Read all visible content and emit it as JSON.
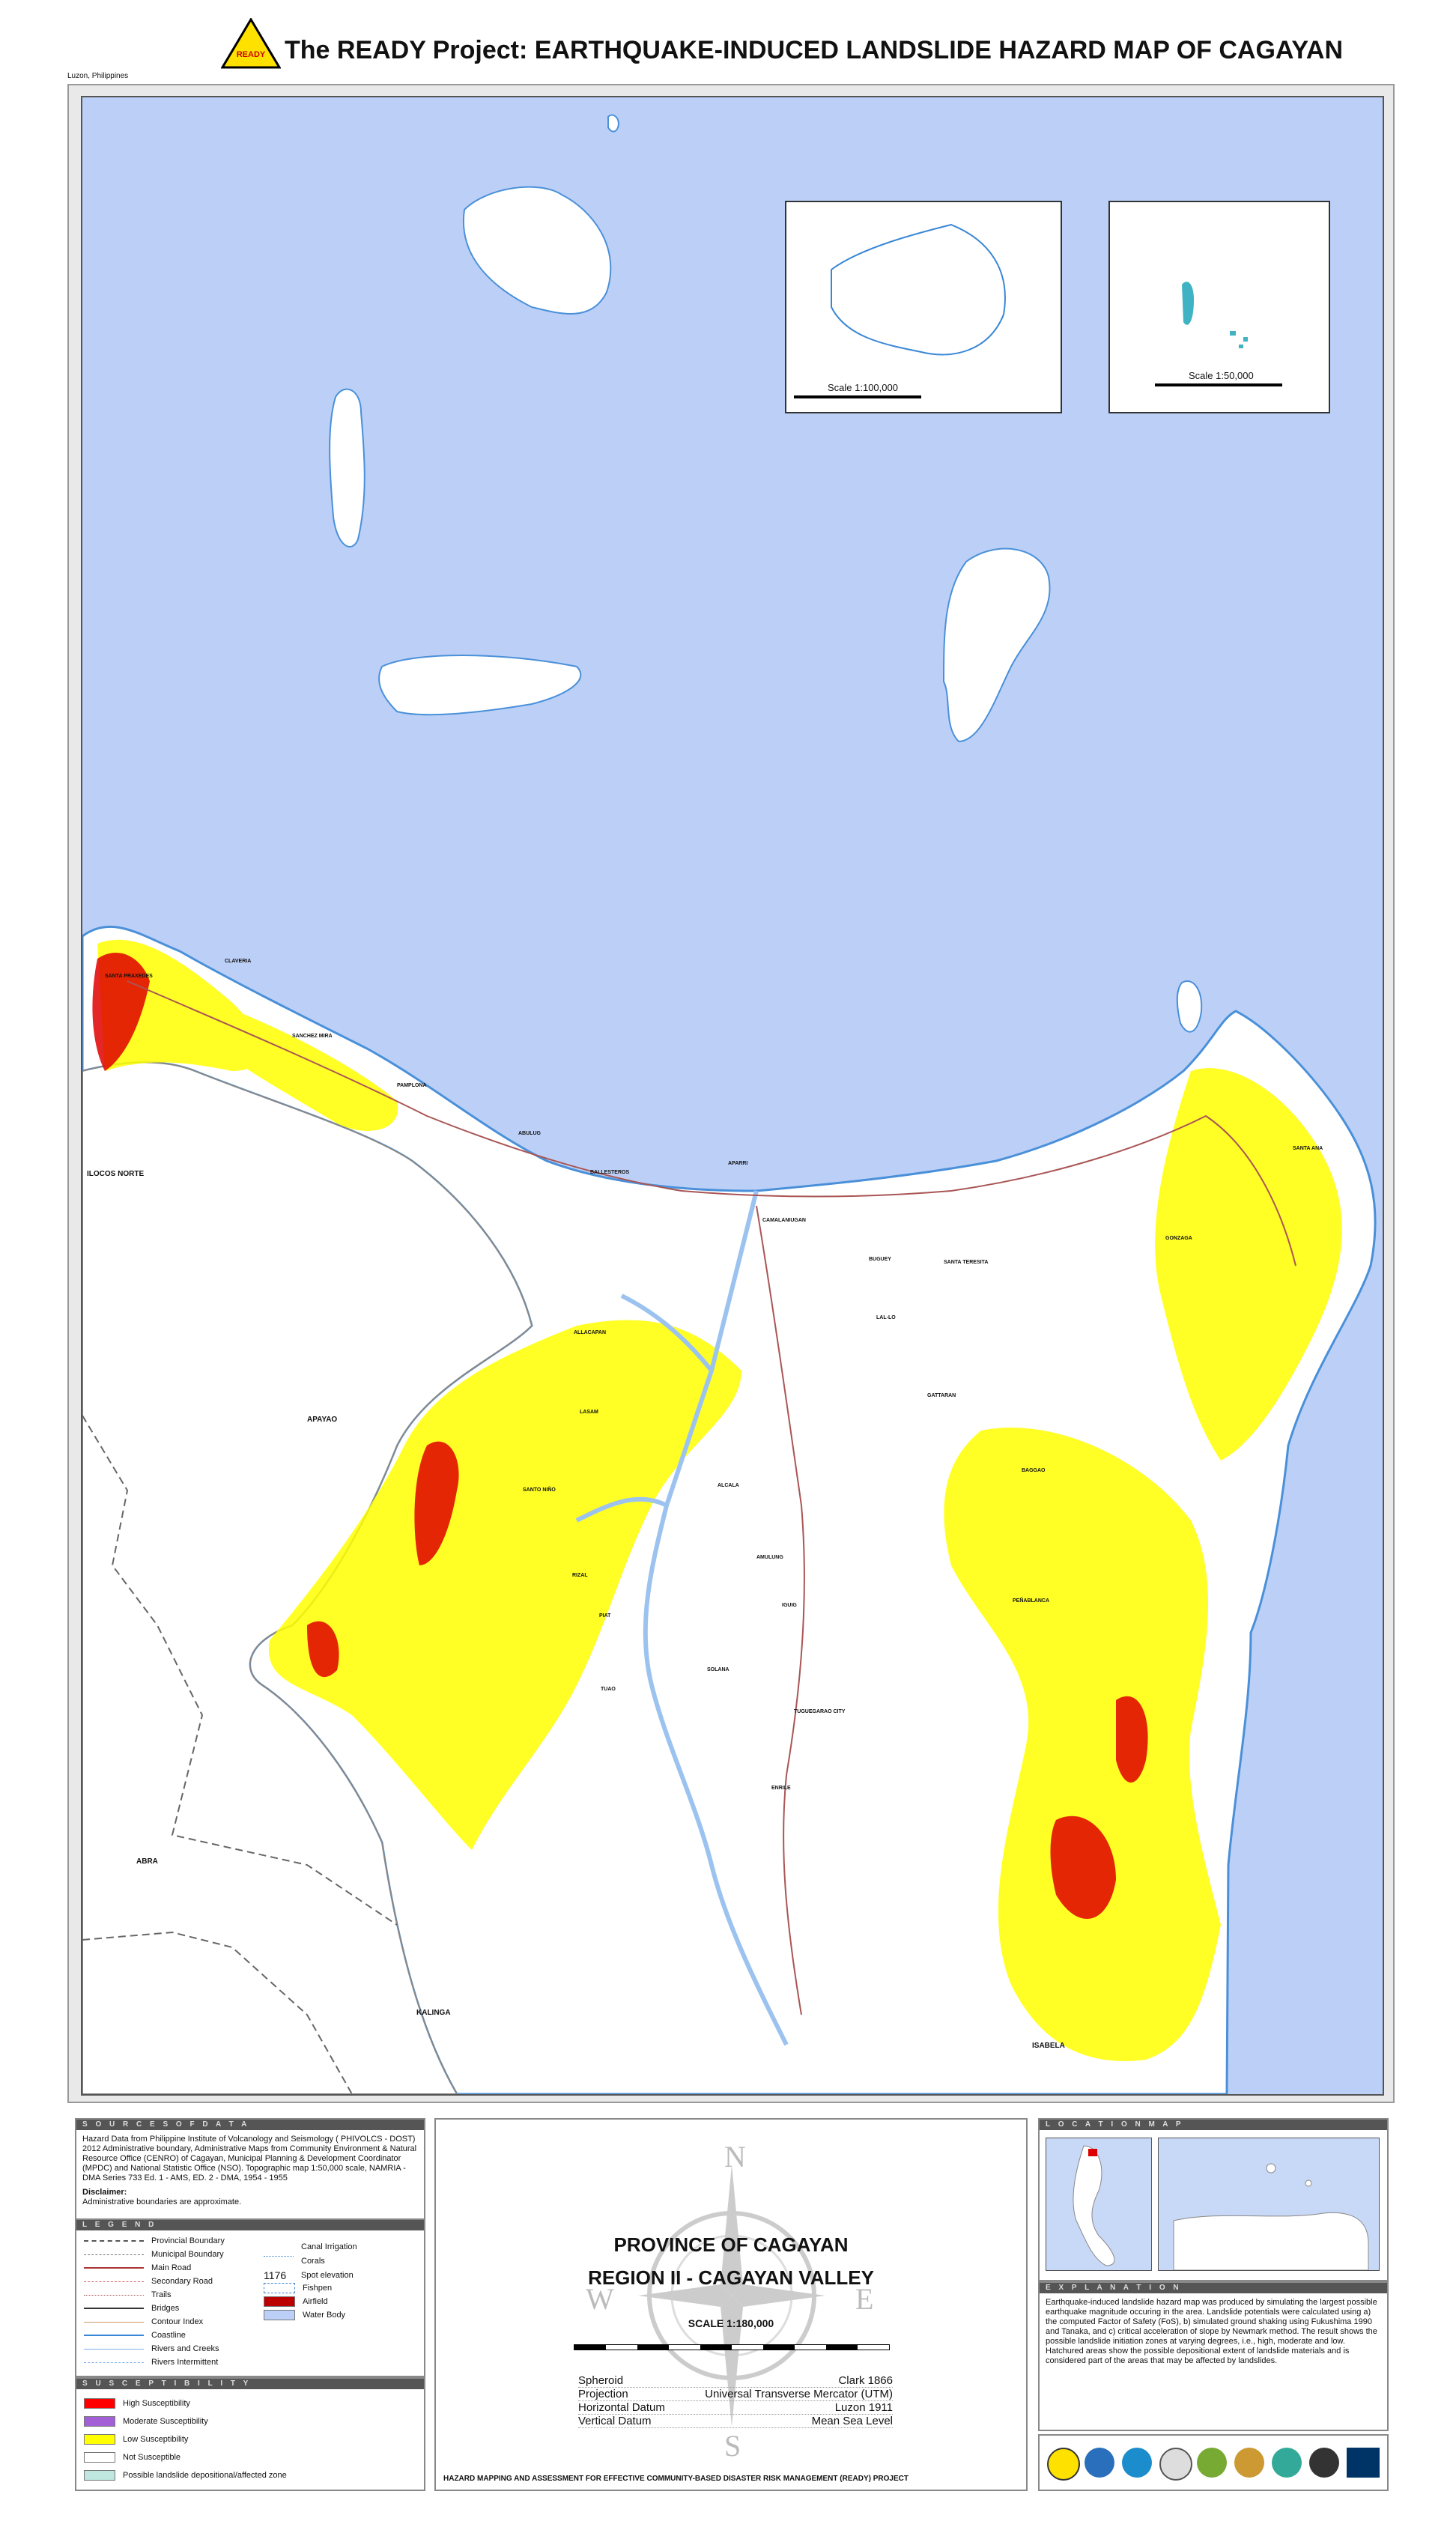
{
  "header": {
    "title": "The READY Project: EARTHQUAKE-INDUCED LANDSLIDE HAZARD MAP OF CAGAYAN",
    "logo_text": "READY",
    "location_note": "Luzon, Philippines"
  },
  "map": {
    "region_labels": [
      "ILOCOS NORTE",
      "APAYAO",
      "ABRA",
      "KALINGA",
      "ISABELA"
    ],
    "municipality_labels": [
      "SANTA PRAXEDES",
      "CLAVERIA",
      "SANCHEZ MIRA",
      "PAMPLONA",
      "ABULUG",
      "BALLESTEROS",
      "APARRI",
      "CAMALANIUGAN",
      "BUGUEY",
      "SANTA TERESITA",
      "GONZAGA",
      "SANTA ANA",
      "LAL-LO",
      "ALLACAPAN",
      "GATTARAN",
      "LASAM",
      "SANTO NIÑO",
      "ALCALA",
      "BAGGAO",
      "AMULUNG",
      "RIZAL",
      "PIAT",
      "IGUIG",
      "PEÑABLANCA",
      "SOLANA",
      "TUGUEGARAO CITY",
      "TUAO",
      "ENRILE"
    ],
    "inset1_scale": "Scale 1:100,000",
    "inset2_scale": "Scale 1:50,000"
  },
  "sources": {
    "heading": "S O U R C E S   O F   D A T A",
    "text": "Hazard Data from Philippine Institute of Volcanology and Seismology ( PHIVOLCS - DOST) 2012 Administrative boundary, Administrative Maps from Community Environment & Natural Resource Office (CENRO) of Cagayan, Municipal Planning & Development Coordinator (MPDC) and National Statistic Office (NSO). Topographic map 1:50,000 scale, NAMRIA - DMA Series 733 Ed. 1 - AMS, ED. 2 - DMA, 1954 - 1955",
    "disclaimer_title": "Disclaimer:",
    "disclaimer": "Administrative boundaries are approximate."
  },
  "legend": {
    "heading": "L E G E N D",
    "left_items": [
      "Provincial Boundary",
      "Municipal Boundary",
      "Main Road",
      "Secondary Road",
      "Trails",
      "Bridges",
      "Contour Index",
      "Coastline",
      "Rivers and Creeks",
      "Rivers Intermittent"
    ],
    "right_items": [
      "Canal Irrigation",
      "Corals",
      "Spot elevation",
      "Fishpen",
      "Airfield",
      "Water Body"
    ],
    "spot_value": "1176"
  },
  "susceptibility": {
    "heading": "S U S C E P T I B I L I T Y",
    "items": [
      {
        "label": "High Susceptibility",
        "color": "#ff0000"
      },
      {
        "label": "Moderate Susceptibility",
        "color": "#a35fd6"
      },
      {
        "label": "Low Susceptibility",
        "color": "#ffff00"
      },
      {
        "label": "Not Susceptible",
        "color": "#ffffff"
      },
      {
        "label": "Possible landslide depositional/affected zone",
        "color": "#bfe6df"
      }
    ]
  },
  "center": {
    "province": "PROVINCE OF CAGAYAN",
    "region": "REGION II - CAGAYAN VALLEY",
    "scale": "SCALE 1:180,000",
    "compass": [
      "N",
      "E",
      "S",
      "W"
    ],
    "projection": [
      {
        "label": "Spheroid",
        "value": "Clark 1866"
      },
      {
        "label": "Projection",
        "value": "Universal Transverse Mercator (UTM)"
      },
      {
        "label": "Horizontal Datum",
        "value": "Luzon 1911"
      },
      {
        "label": "Vertical Datum",
        "value": "Mean Sea Level"
      }
    ],
    "footer": "HAZARD MAPPING AND ASSESSMENT FOR EFFECTIVE COMMUNITY-BASED DISASTER RISK MANAGEMENT (READY) PROJECT"
  },
  "location_map": {
    "heading": "L O C A T I O N   M A P"
  },
  "explanation": {
    "heading": "E X P L A N A T I O N",
    "text": "Earthquake-induced landslide hazard map was produced by simulating the largest possible earthquake magnitude occuring in the area. Landslide potentials were calculated using a) the computed Factor of Safety (FoS), b) simulated ground shaking using Fukushima 1990 and Tanaka, and c) critical acceleration of slope by Newmark method. The result shows the possible landslide initiation zones at varying degrees, i.e., high, moderate and low. Hatchured areas show the possible depositional extent of landslide materials and is considered part of the areas that may be affected by landslides."
  },
  "colors": {
    "sea": "#bcd0f7",
    "land": "#ffffff",
    "high": "#ff0000",
    "low": "#ffff00",
    "river": "#a9c8f0"
  }
}
